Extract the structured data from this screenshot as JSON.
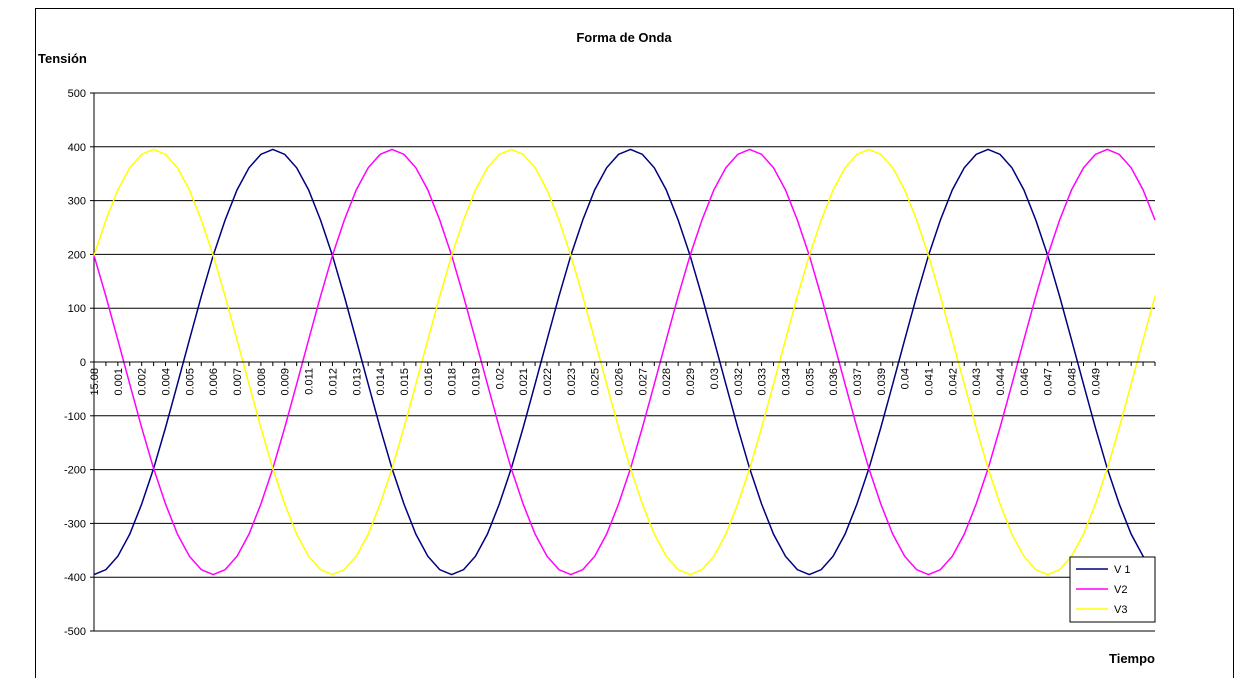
{
  "chart_data": {
    "type": "line",
    "title": "Forma de Onda",
    "y_label": "Tensión",
    "x_label": "Tiempo",
    "categories": [
      "15.08",
      null,
      "0.001",
      null,
      "0.002",
      null,
      "0.004",
      null,
      "0.005",
      null,
      "0.006",
      null,
      "0.007",
      null,
      "0.008",
      null,
      "0.009",
      null,
      "0.011",
      null,
      "0.012",
      null,
      "0.013",
      null,
      "0.014",
      null,
      "0.015",
      null,
      "0.016",
      null,
      "0.018",
      null,
      "0.019",
      null,
      "0.02",
      null,
      "0.021",
      null,
      "0.022",
      null,
      "0.023",
      null,
      "0.025",
      null,
      "0.026",
      null,
      "0.027",
      null,
      "0.028",
      null,
      "0.029",
      null,
      "0.03",
      null,
      "0.032",
      null,
      "0.033",
      null,
      "0.034",
      null,
      "0.035",
      null,
      "0.036",
      null,
      "0.037",
      null,
      "0.039",
      null,
      "0.04",
      null,
      "0.041",
      null,
      "0.042",
      null,
      "0.043",
      null,
      "0.044",
      null,
      "0.046",
      null,
      "0.047",
      null,
      "0.048",
      null,
      "0.049",
      null,
      null,
      null,
      null,
      null
    ],
    "series": [
      {
        "name": "V 1",
        "color": "#000080",
        "values": [
          -395,
          -386,
          -361,
          -320,
          -264,
          -198,
          -122,
          -41,
          41,
          122,
          198,
          264,
          320,
          361,
          386,
          395,
          386,
          361,
          320,
          264,
          198,
          122,
          41,
          -41,
          -122,
          -198,
          -264,
          -320,
          -361,
          -386,
          -395,
          -386,
          -361,
          -320,
          -264,
          -198,
          -122,
          -41,
          41,
          122,
          198,
          264,
          320,
          361,
          386,
          395,
          386,
          361,
          320,
          264,
          198,
          122,
          41,
          -41,
          -122,
          -198,
          -264,
          -320,
          -361,
          -386,
          -395,
          -386,
          -361,
          -320,
          -264,
          -198,
          -122,
          -41,
          41,
          122,
          198,
          264,
          320,
          361,
          386,
          395,
          386,
          361,
          320,
          264,
          198,
          122,
          41,
          -41,
          -122,
          -198,
          -264,
          -320,
          -361,
          -386
        ]
      },
      {
        "name": "V2",
        "color": "#ff00ff",
        "values": [
          198,
          122,
          41,
          -41,
          -122,
          -198,
          -264,
          -320,
          -361,
          -386,
          -395,
          -386,
          -361,
          -320,
          -264,
          -198,
          -122,
          -41,
          41,
          122,
          198,
          264,
          320,
          361,
          386,
          395,
          386,
          361,
          320,
          264,
          198,
          122,
          41,
          -41,
          -122,
          -198,
          -264,
          -320,
          -361,
          -386,
          -395,
          -386,
          -361,
          -320,
          -264,
          -198,
          -122,
          -41,
          41,
          122,
          198,
          264,
          320,
          361,
          386,
          395,
          386,
          361,
          320,
          264,
          198,
          122,
          41,
          -41,
          -122,
          -198,
          -264,
          -320,
          -361,
          -386,
          -395,
          -386,
          -361,
          -320,
          -264,
          -198,
          -122,
          -41,
          41,
          122,
          198,
          264,
          320,
          361,
          386,
          395,
          386,
          361,
          320,
          264
        ]
      },
      {
        "name": "V3",
        "color": "#ffff00",
        "values": [
          198,
          264,
          320,
          361,
          386,
          395,
          386,
          361,
          320,
          264,
          198,
          122,
          41,
          -41,
          -122,
          -198,
          -264,
          -320,
          -361,
          -386,
          -395,
          -386,
          -361,
          -320,
          -264,
          -198,
          -122,
          -41,
          41,
          122,
          198,
          264,
          320,
          361,
          386,
          395,
          386,
          361,
          320,
          264,
          198,
          122,
          41,
          -41,
          -122,
          -198,
          -264,
          -320,
          -361,
          -386,
          -395,
          -386,
          -361,
          -320,
          -264,
          -198,
          -122,
          -41,
          41,
          122,
          198,
          264,
          320,
          361,
          386,
          395,
          386,
          361,
          320,
          264,
          198,
          122,
          41,
          -41,
          -122,
          -198,
          -264,
          -320,
          -361,
          -386,
          -395,
          -386,
          -361,
          -320,
          -264,
          -198,
          -122,
          -41,
          41,
          122
        ]
      }
    ],
    "ylim": [
      -500,
      500
    ],
    "yticks": [
      -500,
      -400,
      -300,
      -200,
      -100,
      0,
      100,
      200,
      300,
      400,
      500
    ],
    "grid": true,
    "legend": "lower right"
  }
}
